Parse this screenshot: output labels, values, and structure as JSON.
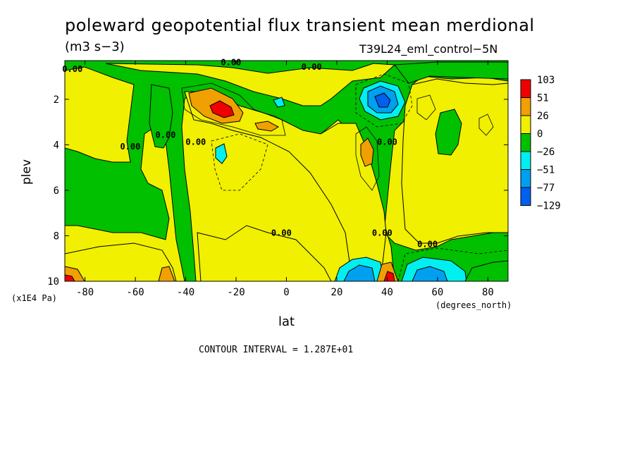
{
  "chart_data": {
    "type": "heatmap",
    "title": "poleward geopotential flux transient mean merdional",
    "units": "(m3 s−3)",
    "run_id": "T39L24_eml_control−5N",
    "xlabel": "lat",
    "ylabel": "plev",
    "x_units": "(degrees_north)",
    "y_scale_note": "(x1E4 Pa)",
    "contour_interval_text": "CONTOUR INTERVAL = 1.287E+01",
    "xlim": [
      -88,
      88
    ],
    "ylim": [
      10,
      0.3
    ],
    "x_ticks": [
      "-80",
      "-60",
      "-40",
      "-20",
      "0",
      "20",
      "40",
      "60",
      "80"
    ],
    "x_tick_values": [
      -80,
      -60,
      -40,
      -20,
      0,
      20,
      40,
      60,
      80
    ],
    "y_ticks": [
      "2",
      "4",
      "6",
      "8",
      "10"
    ],
    "y_tick_values": [
      2,
      4,
      6,
      8,
      10
    ],
    "contour_labels": [
      {
        "text": "0.00",
        "x": -85,
        "y": 0.8
      },
      {
        "text": "0.00",
        "x": -62,
        "y": 4.2
      },
      {
        "text": "0.00",
        "x": -48,
        "y": 3.7
      },
      {
        "text": "0.00",
        "x": -36,
        "y": 4.0
      },
      {
        "text": "0.00",
        "x": -22,
        "y": 0.5
      },
      {
        "text": "0.00",
        "x": 10,
        "y": 0.7
      },
      {
        "text": "0.00",
        "x": 40,
        "y": 4.0
      },
      {
        "text": "0.00",
        "x": 38,
        "y": 8.0
      },
      {
        "text": "0.00",
        "x": 56,
        "y": 8.5
      },
      {
        "text": "0.00",
        "x": -2,
        "y": 8.0
      }
    ],
    "colorbar": {
      "levels": [
        "103",
        "51",
        "26",
        "0",
        "−26",
        "−51",
        "−77",
        "−129"
      ],
      "colors": [
        "#f00000",
        "#f0a000",
        "#f0f000",
        "#00c000",
        "#00f0f0",
        "#00a0f0",
        "#0060f0"
      ]
    },
    "regions": [
      {
        "value_class": "0..26",
        "color": "#f0f000",
        "desc": "background positive band"
      },
      {
        "value_class": "-26..0",
        "color": "#00c000"
      },
      {
        "value_class": "26..51",
        "color": "#f0a000"
      },
      {
        "value_class": "51..103",
        "color": "#f00000"
      },
      {
        "value_class": "-51..-26",
        "color": "#00f0f0"
      },
      {
        "value_class": "-77..-51",
        "color": "#00a0f0"
      },
      {
        "value_class": "-129..-77",
        "color": "#0060f0"
      }
    ],
    "grid": false,
    "legend_position": "right"
  }
}
